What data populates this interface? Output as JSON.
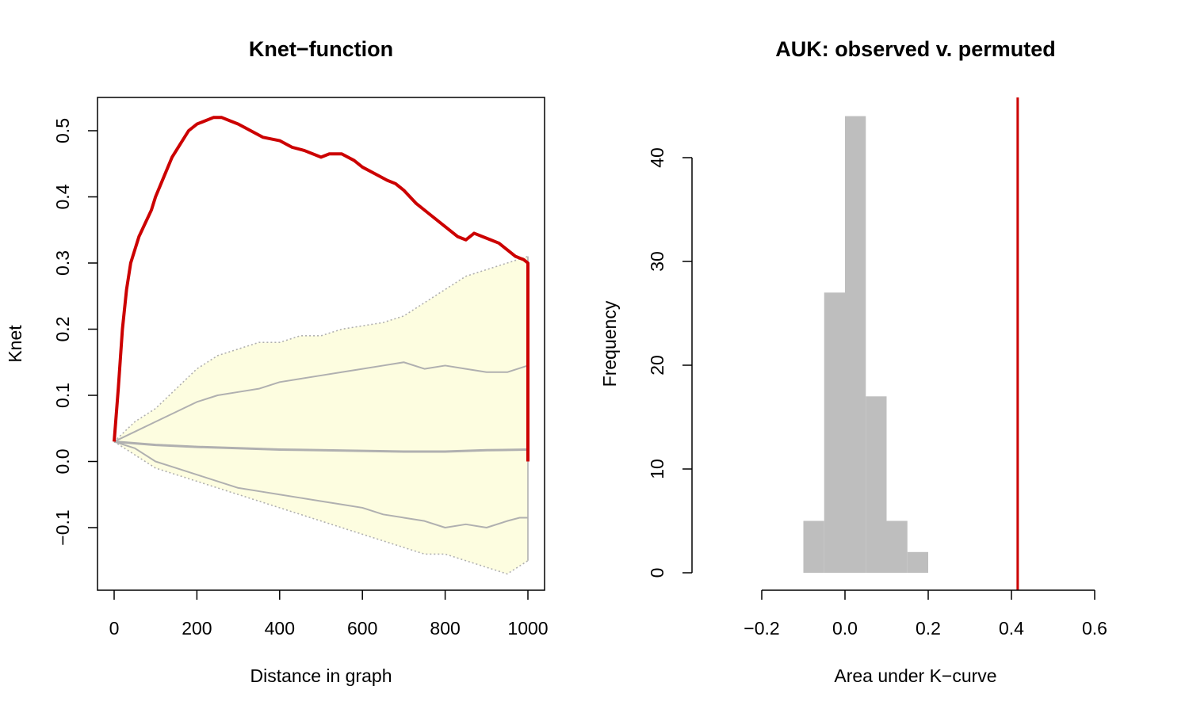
{
  "charts": [
    {
      "type": "line",
      "title": "Knet−function",
      "xlabel": "Distance in graph",
      "ylabel": "Knet",
      "xlim": [
        0,
        1000
      ],
      "ylim": [
        -0.2,
        0.55
      ],
      "xticks": [
        "0",
        "200",
        "400",
        "600",
        "800",
        "1000"
      ],
      "xtick_values": [
        0,
        200,
        400,
        600,
        800,
        1000
      ],
      "yticks": [
        "−0.1",
        "0.0",
        "0.1",
        "0.2",
        "0.3",
        "0.4",
        "0.5"
      ],
      "ytick_values": [
        -0.1,
        0,
        0.1,
        0.2,
        0.3,
        0.4,
        0.5
      ],
      "colors": {
        "observed": "#cc0000",
        "envelope_fill": "#fdfde0",
        "envelope_border": "#b0b0b0",
        "permuted": "#b0b0b0"
      },
      "envelope": {
        "x": [
          0,
          50,
          100,
          150,
          200,
          250,
          300,
          350,
          400,
          450,
          500,
          550,
          600,
          650,
          700,
          750,
          800,
          850,
          900,
          950,
          1000
        ],
        "upper": [
          0.03,
          0.06,
          0.08,
          0.11,
          0.14,
          0.16,
          0.17,
          0.18,
          0.18,
          0.19,
          0.19,
          0.2,
          0.205,
          0.21,
          0.22,
          0.24,
          0.26,
          0.28,
          0.29,
          0.3,
          0.31
        ],
        "lower": [
          0.03,
          0.01,
          -0.01,
          -0.02,
          -0.03,
          -0.04,
          -0.05,
          -0.06,
          -0.07,
          -0.08,
          -0.09,
          -0.1,
          -0.11,
          -0.12,
          -0.13,
          -0.14,
          -0.14,
          -0.15,
          -0.16,
          -0.17,
          -0.15
        ]
      },
      "series": [
        {
          "role": "observed",
          "x": [
            0,
            10,
            20,
            30,
            40,
            50,
            60,
            75,
            90,
            100,
            120,
            140,
            160,
            180,
            200,
            220,
            240,
            260,
            280,
            300,
            330,
            360,
            400,
            430,
            460,
            500,
            520,
            550,
            580,
            600,
            630,
            660,
            680,
            700,
            730,
            760,
            800,
            830,
            850,
            870,
            890,
            910,
            930,
            950,
            970,
            990,
            1000,
            1000
          ],
          "y": [
            0.03,
            0.11,
            0.2,
            0.26,
            0.3,
            0.32,
            0.34,
            0.36,
            0.38,
            0.4,
            0.43,
            0.46,
            0.48,
            0.5,
            0.51,
            0.515,
            0.52,
            0.52,
            0.515,
            0.51,
            0.5,
            0.49,
            0.485,
            0.475,
            0.47,
            0.46,
            0.465,
            0.465,
            0.455,
            0.445,
            0.435,
            0.425,
            0.42,
            0.41,
            0.39,
            0.375,
            0.355,
            0.34,
            0.335,
            0.345,
            0.34,
            0.335,
            0.33,
            0.32,
            0.31,
            0.305,
            0.3,
            0.0
          ]
        },
        {
          "role": "permuted-upper-quantile",
          "x": [
            0,
            50,
            100,
            150,
            200,
            250,
            300,
            350,
            400,
            450,
            500,
            550,
            600,
            650,
            700,
            750,
            800,
            850,
            900,
            950,
            1000
          ],
          "y": [
            0.03,
            0.045,
            0.06,
            0.075,
            0.09,
            0.1,
            0.105,
            0.11,
            0.12,
            0.125,
            0.13,
            0.135,
            0.14,
            0.145,
            0.15,
            0.14,
            0.145,
            0.14,
            0.135,
            0.135,
            0.145
          ]
        },
        {
          "role": "permuted-median",
          "x": [
            0,
            100,
            200,
            300,
            400,
            500,
            600,
            700,
            800,
            900,
            1000
          ],
          "y": [
            0.03,
            0.025,
            0.022,
            0.02,
            0.018,
            0.017,
            0.016,
            0.015,
            0.015,
            0.017,
            0.018
          ]
        },
        {
          "role": "permuted-lower-quantile",
          "x": [
            0,
            50,
            100,
            150,
            200,
            250,
            300,
            350,
            400,
            450,
            500,
            550,
            600,
            650,
            700,
            750,
            800,
            850,
            900,
            950,
            980,
            1000
          ],
          "y": [
            0.03,
            0.02,
            0.0,
            -0.01,
            -0.02,
            -0.03,
            -0.04,
            -0.045,
            -0.05,
            -0.055,
            -0.06,
            -0.065,
            -0.07,
            -0.08,
            -0.085,
            -0.09,
            -0.1,
            -0.095,
            -0.1,
            -0.09,
            -0.085,
            -0.085
          ]
        }
      ]
    },
    {
      "type": "bar",
      "title": "AUK: observed v. permuted",
      "xlabel": "Area under K−curve",
      "ylabel": "Frequency",
      "xlim": [
        -0.2,
        0.6
      ],
      "ylim": [
        0,
        45
      ],
      "xticks": [
        "−0.2",
        "0.0",
        "0.2",
        "0.4",
        "0.6"
      ],
      "xtick_values": [
        -0.2,
        0,
        0.2,
        0.4,
        0.6
      ],
      "yticks": [
        "0",
        "10",
        "20",
        "30",
        "40"
      ],
      "ytick_values": [
        0,
        10,
        20,
        30,
        40
      ],
      "bins": [
        {
          "from": -0.1,
          "to": -0.05,
          "count": 5
        },
        {
          "from": -0.05,
          "to": 0.0,
          "count": 27
        },
        {
          "from": 0.0,
          "to": 0.05,
          "count": 44
        },
        {
          "from": 0.05,
          "to": 0.1,
          "count": 17
        },
        {
          "from": 0.1,
          "to": 0.15,
          "count": 5
        },
        {
          "from": 0.15,
          "to": 0.2,
          "count": 2
        }
      ],
      "observed_value": 0.415,
      "colors": {
        "bars": "#bebebe",
        "observed": "#cc0000"
      }
    }
  ]
}
